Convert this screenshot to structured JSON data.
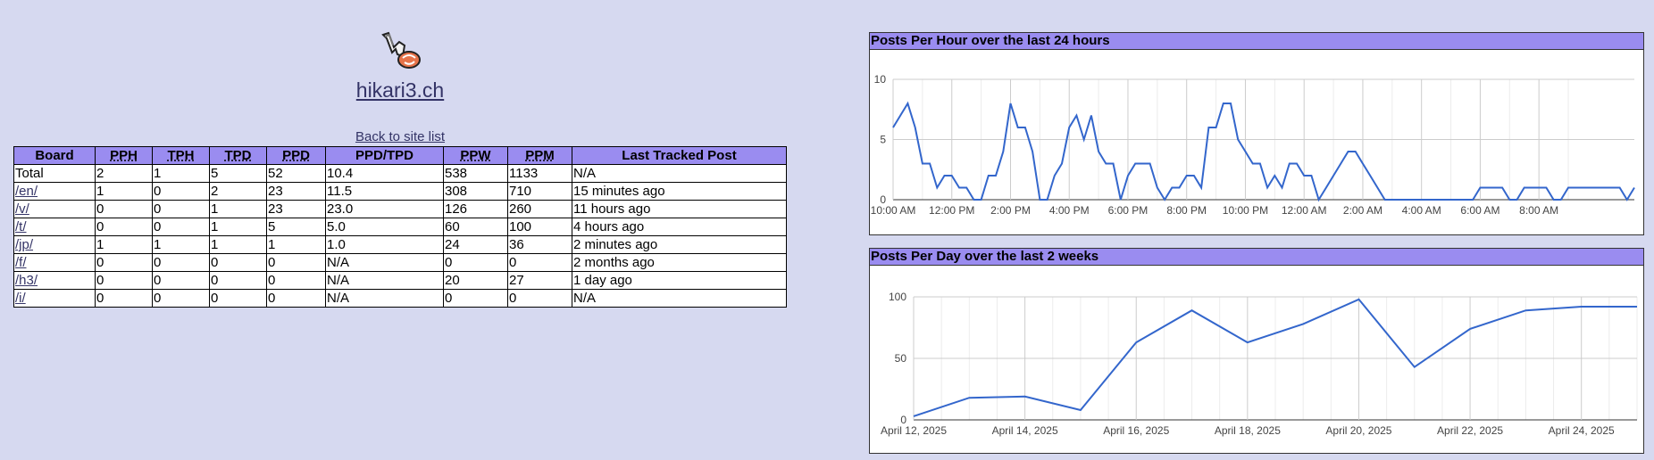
{
  "site": {
    "name": "hikari3.ch",
    "back_link": "Back to site list"
  },
  "table": {
    "headers": [
      "Board",
      "PPH",
      "TPH",
      "TPD",
      "PPD",
      "PPD/TPD",
      "PPW",
      "PPM",
      "Last Tracked Post"
    ],
    "rows": [
      [
        "Total",
        "2",
        "1",
        "5",
        "52",
        "10.4",
        "538",
        "1133",
        "N/A"
      ],
      [
        "/en/",
        "1",
        "0",
        "2",
        "23",
        "11.5",
        "308",
        "710",
        "15 minutes ago"
      ],
      [
        "/v/",
        "0",
        "0",
        "1",
        "23",
        "23.0",
        "126",
        "260",
        "11 hours ago"
      ],
      [
        "/t/",
        "0",
        "0",
        "1",
        "5",
        "5.0",
        "60",
        "100",
        "4 hours ago"
      ],
      [
        "/jp/",
        "1",
        "1",
        "1",
        "1",
        "1.0",
        "24",
        "36",
        "2 minutes ago"
      ],
      [
        "/f/",
        "0",
        "0",
        "0",
        "0",
        "N/A",
        "0",
        "0",
        "2 months ago"
      ],
      [
        "/h3/",
        "0",
        "0",
        "0",
        "0",
        "N/A",
        "20",
        "27",
        "1 day ago"
      ],
      [
        "/i/",
        "0",
        "0",
        "0",
        "0",
        "N/A",
        "0",
        "0",
        "N/A"
      ]
    ]
  },
  "colors": {
    "background": "#d6d9f0",
    "header": "#9a8cf0",
    "line": "#3366cc",
    "link": "#333366"
  },
  "chart_data": [
    {
      "type": "line",
      "title": "Posts Per Hour over the last 24 hours",
      "xlabel": "",
      "ylabel": "",
      "ylim": [
        0,
        10
      ],
      "y_ticks": [
        "0",
        "5",
        "10"
      ],
      "x_tick_labels": [
        "10:00 AM",
        "12:00 PM",
        "2:00 PM",
        "4:00 PM",
        "6:00 PM",
        "8:00 PM",
        "10:00 PM",
        "12:00 AM",
        "2:00 AM",
        "4:00 AM",
        "6:00 AM",
        "8:00 AM"
      ],
      "x_range_hours": [
        0,
        24.5
      ],
      "grid": true,
      "values": [
        6,
        7,
        8,
        6,
        3,
        3,
        1,
        2,
        2,
        1,
        1,
        0,
        0,
        2,
        2,
        4,
        8,
        6,
        6,
        4,
        0,
        0,
        2,
        3,
        6,
        7,
        5,
        7,
        4,
        3,
        3,
        0,
        2,
        3,
        3,
        3,
        1,
        0,
        1,
        1,
        2,
        2,
        1,
        6,
        6,
        8,
        8,
        5,
        4,
        3,
        3,
        1,
        2,
        1,
        3,
        3,
        2,
        2,
        0,
        1,
        2,
        3,
        4,
        4,
        3,
        2,
        1,
        0,
        0,
        0,
        0,
        0,
        0,
        0,
        0,
        0,
        0,
        0,
        0,
        0,
        1,
        1,
        1,
        1,
        0,
        0,
        1,
        1,
        1,
        1,
        0,
        0,
        1,
        1,
        1,
        1,
        1,
        1,
        1,
        1,
        0,
        1
      ]
    },
    {
      "type": "line",
      "title": "Posts Per Day over the last 2 weeks",
      "xlabel": "",
      "ylabel": "",
      "ylim": [
        0,
        100
      ],
      "y_ticks": [
        "0",
        "50",
        "100"
      ],
      "x_tick_labels": [
        "April 12, 2025",
        "April 14, 2025",
        "April 16, 2025",
        "April 18, 2025",
        "April 20, 2025",
        "April 22, 2025",
        "April 24, 2025"
      ],
      "grid": true,
      "x": [
        "2025-04-12",
        "2025-04-13",
        "2025-04-14",
        "2025-04-15",
        "2025-04-16",
        "2025-04-17",
        "2025-04-18",
        "2025-04-19",
        "2025-04-20",
        "2025-04-21",
        "2025-04-22",
        "2025-04-23",
        "2025-04-24",
        "2025-04-25"
      ],
      "values": [
        3,
        18,
        19,
        8,
        63,
        89,
        63,
        78,
        98,
        43,
        74,
        89,
        92,
        92
      ]
    }
  ]
}
